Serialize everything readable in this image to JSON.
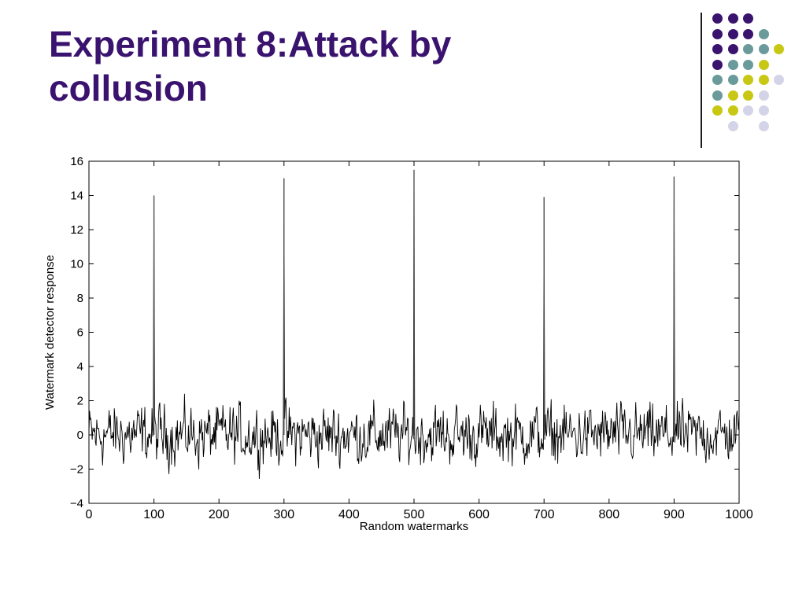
{
  "slide": {
    "title_line1": "Experiment 8:Attack by",
    "title_line2": "collusion"
  },
  "decoration": {
    "dot_grid": [
      [
        "purple",
        "purple",
        "purple",
        "",
        "",
        ""
      ],
      [
        "purple",
        "purple",
        "purple",
        "teal",
        "",
        ""
      ],
      [
        "purple",
        "purple",
        "teal",
        "teal",
        "yellow",
        ""
      ],
      [
        "purple",
        "teal",
        "teal",
        "yellow",
        "",
        ""
      ],
      [
        "teal",
        "teal",
        "yellow",
        "yellow",
        "lavender",
        ""
      ],
      [
        "teal",
        "yellow",
        "yellow",
        "lavender",
        "",
        ""
      ],
      [
        "yellow",
        "yellow",
        "lavender",
        "lavender",
        "",
        ""
      ],
      [
        "",
        "lavender",
        "",
        "lavender",
        "",
        ""
      ]
    ],
    "colors": {
      "purple": "#3a136f",
      "teal": "#6a9a9a",
      "yellow": "#c8c814",
      "lavender": "#d4d4e8"
    }
  },
  "chart_data": {
    "type": "line",
    "title": "",
    "xlabel": "Random watermarks",
    "ylabel": "Watermark detector response",
    "xlim": [
      0,
      1000
    ],
    "ylim": [
      -4,
      16
    ],
    "xticks": [
      0,
      100,
      200,
      300,
      400,
      500,
      600,
      700,
      800,
      900,
      1000
    ],
    "yticks": [
      -4,
      -2,
      0,
      2,
      4,
      6,
      8,
      10,
      12,
      14,
      16
    ],
    "ytick_labels": [
      "−4",
      "−2",
      "0",
      "2",
      "4",
      "6",
      "8",
      "10",
      "12",
      "14",
      "16"
    ],
    "series": [
      {
        "line_color": "#000000",
        "noise_points": 1000,
        "noise_range": [
          -3,
          3
        ],
        "peaks": [
          {
            "x": 100,
            "y": 14.0
          },
          {
            "x": 300,
            "y": 15.0
          },
          {
            "x": 500,
            "y": 15.5
          },
          {
            "x": 700,
            "y": 13.9
          },
          {
            "x": 900,
            "y": 15.1
          }
        ]
      }
    ],
    "grid": false
  }
}
